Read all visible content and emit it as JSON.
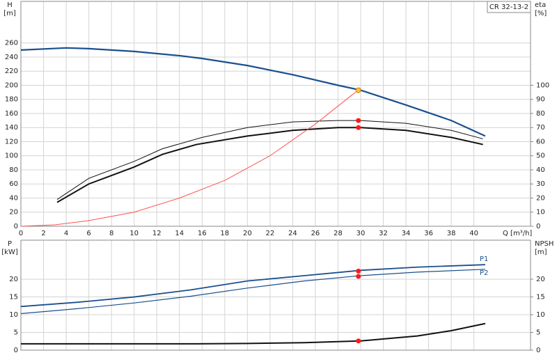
{
  "chart_data": [
    {
      "type": "line",
      "label": "CR 32-13-2",
      "ylabel": "H",
      "yunit": "[m]",
      "y2label": "eta",
      "y2unit": "[%]",
      "xlabel": "Q [m³/h]",
      "xlim": [
        0,
        45
      ],
      "ylim": [
        0,
        319
      ],
      "y2lim": [
        0,
        159.5
      ],
      "grid": true,
      "xticks": [
        0,
        2,
        4,
        6,
        8,
        10,
        12,
        14,
        16,
        18,
        20,
        22,
        24,
        26,
        28,
        30,
        32,
        34,
        36,
        38,
        40
      ],
      "yticks": [
        0,
        20,
        40,
        60,
        80,
        100,
        120,
        140,
        160,
        180,
        200,
        220,
        240,
        260
      ],
      "y2ticks": [
        0,
        10,
        20,
        30,
        40,
        50,
        60,
        70,
        80,
        90,
        100
      ],
      "series": [
        {
          "color": "#1a4f8f",
          "width": 2.2,
          "x": [
            0,
            4,
            6,
            10,
            14,
            16,
            20,
            24,
            28,
            30,
            34,
            38,
            41
          ],
          "values": [
            250,
            253,
            252,
            248,
            242,
            238,
            228,
            215,
            200,
            193,
            172,
            150,
            128
          ]
        },
        {
          "color": "#111111",
          "width": 1,
          "axis": "y2",
          "x": [
            3.2,
            6,
            10,
            12.5,
            16,
            20,
            24,
            28,
            30,
            34,
            38,
            40.8
          ],
          "values": [
            19,
            34,
            46,
            55,
            63,
            70,
            74,
            75,
            75,
            73,
            68,
            62
          ]
        },
        {
          "color": "#111111",
          "width": 2,
          "axis": "y2",
          "x": [
            3.2,
            6,
            10,
            12.5,
            15.5,
            20,
            24,
            28,
            30,
            34,
            38,
            40.8
          ],
          "values": [
            17,
            30,
            42,
            51,
            58,
            64,
            68,
            70,
            70,
            68,
            63,
            58
          ]
        },
        {
          "color": "#ff5050",
          "width": 1,
          "x": [
            0,
            3,
            6,
            10,
            14,
            18,
            22,
            26,
            30
          ],
          "values": [
            0,
            2,
            8,
            20,
            40,
            65,
            100,
            145,
            196
          ]
        }
      ],
      "markers": [
        {
          "x": 29.8,
          "y": 193,
          "color": "#f5c542"
        },
        {
          "x": 29.8,
          "y": 75,
          "axis": "y2",
          "color": "#ff1a1a"
        },
        {
          "x": 29.8,
          "y": 70,
          "axis": "y2",
          "color": "#ff1a1a"
        }
      ]
    },
    {
      "type": "line",
      "ylabel": "P",
      "yunit": "[kW]",
      "y2label": "NPSH",
      "y2unit": "[m]",
      "xlim": [
        0,
        45
      ],
      "ylim": [
        0,
        31
      ],
      "y2lim": [
        0,
        31
      ],
      "grid": true,
      "yticks": [
        0,
        5,
        10,
        15,
        20
      ],
      "y2ticks": [
        0,
        5,
        10,
        15,
        20
      ],
      "series": [
        {
          "name": "P1",
          "color": "#1a4f8f",
          "width": 1.8,
          "x": [
            0,
            5,
            10,
            15,
            20,
            25,
            30,
            35,
            41
          ],
          "values": [
            12.3,
            13.5,
            15,
            17,
            19.5,
            21,
            22.5,
            23.4,
            24.1
          ]
        },
        {
          "name": "P2",
          "color": "#1a4f8f",
          "width": 1.2,
          "x": [
            0,
            5,
            10,
            15,
            20,
            25,
            30,
            35,
            41
          ],
          "values": [
            10.3,
            11.7,
            13.3,
            15.2,
            17.5,
            19.5,
            21,
            22,
            22.8
          ]
        },
        {
          "color": "#111111",
          "width": 2,
          "axis": "y2",
          "x": [
            0,
            15.5,
            20,
            25,
            30,
            35,
            38,
            41
          ],
          "values": [
            1.8,
            1.8,
            1.9,
            2.1,
            2.6,
            4,
            5.5,
            7.5
          ]
        }
      ],
      "markers": [
        {
          "x": 29.8,
          "y": 22.3,
          "color": "#ff1a1a"
        },
        {
          "x": 29.8,
          "y": 20.8,
          "color": "#ff1a1a"
        },
        {
          "x": 29.8,
          "y": 2.6,
          "axis": "y2",
          "color": "#ff1a1a"
        }
      ]
    }
  ]
}
